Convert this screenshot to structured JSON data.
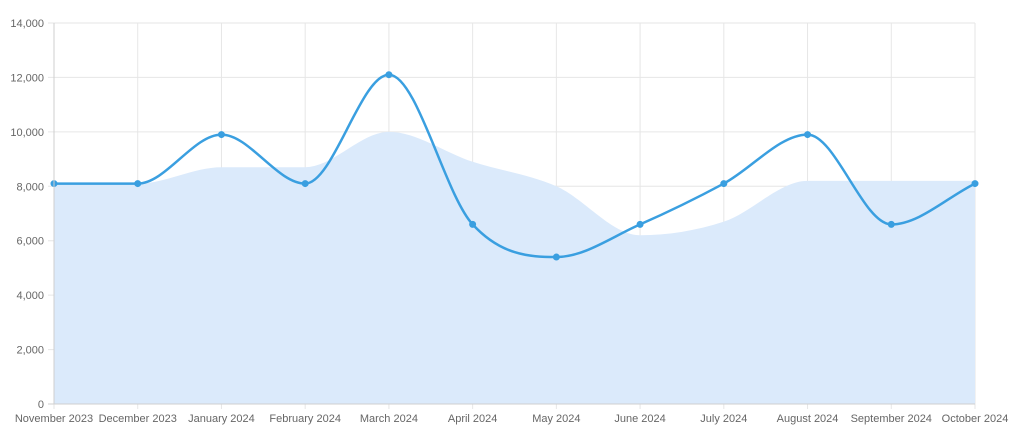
{
  "chart_data": {
    "type": "line",
    "categories": [
      "November 2023",
      "December 2023",
      "January 2024",
      "February 2024",
      "March 2024",
      "April 2024",
      "May 2024",
      "June 2024",
      "July 2024",
      "August 2024",
      "September 2024",
      "October 2024"
    ],
    "y_ticks": [
      "0",
      "2,000",
      "4,000",
      "6,000",
      "8,000",
      "10,000",
      "12,000",
      "14,000"
    ],
    "ylim": [
      0,
      14000
    ],
    "grid": true,
    "legend": "none",
    "series": [
      {
        "type": "area",
        "values": [
          8100,
          8100,
          8700,
          8700,
          10000,
          8900,
          8000,
          6200,
          6700,
          8200,
          8200,
          8200
        ],
        "color": "#dbeafb"
      },
      {
        "type": "line",
        "values": [
          8100,
          8100,
          9900,
          8100,
          12100,
          6600,
          5400,
          6600,
          8100,
          9900,
          6600,
          8100
        ],
        "color": "#3a9fe0"
      }
    ]
  }
}
